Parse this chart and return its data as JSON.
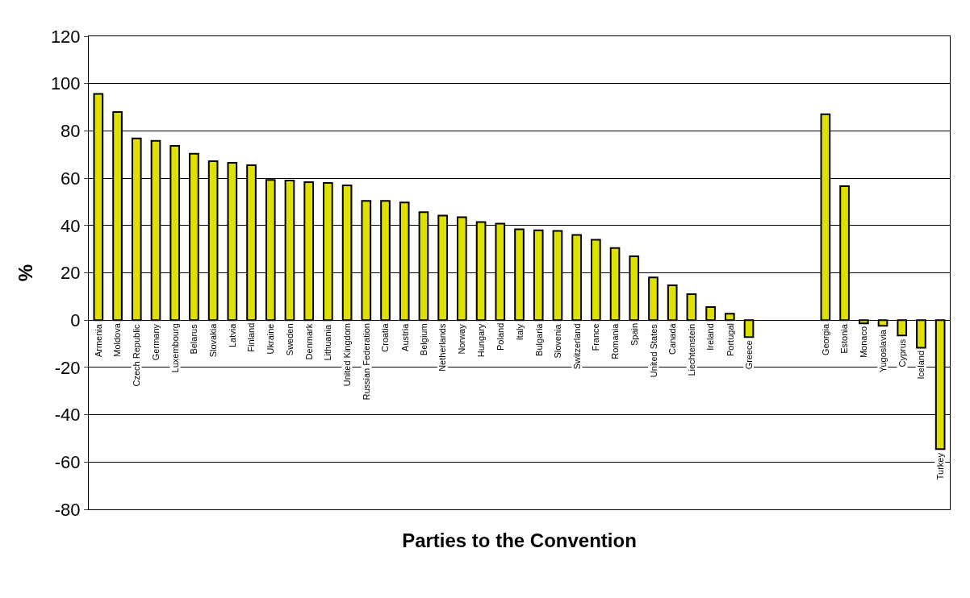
{
  "chart_data": {
    "type": "bar",
    "xlabel": "Parties to the Convention",
    "ylabel": "%",
    "categories": [
      "Armenia",
      "Moldova",
      "Czech Republic",
      "Germany",
      "Luxembourg",
      "Belarus",
      "Slovakia",
      "Latvia",
      "Finland",
      "Ukraine",
      "Sweden",
      "Denmark",
      "Lithuania",
      "United Kingdom",
      "Russian Federation",
      "Croatia",
      "Austria",
      "Belgium",
      "Netherlands",
      "Norway",
      "Hungary",
      "Poland",
      "Italy",
      "Bulgaria",
      "Slovenia",
      "Switzerland",
      "France",
      "Romania",
      "Spain",
      "United States",
      "Canada",
      "Liechtenstein",
      "Ireland",
      "Portugal",
      "Greece",
      null,
      null,
      null,
      "Georgia",
      "Estonia",
      "Monaco",
      "Yugoslavia",
      "Cyprus",
      "Iceland",
      "Turkey"
    ],
    "values": [
      95.6,
      88,
      76.8,
      75.8,
      73.7,
      70.3,
      67.2,
      66.5,
      65.5,
      59.3,
      59,
      58.3,
      58,
      57,
      50.4,
      50.4,
      49.7,
      45.6,
      44.2,
      43.5,
      41.5,
      40.8,
      38.4,
      38,
      37.7,
      36,
      34,
      30.5,
      27,
      18,
      14.7,
      11,
      5.5,
      2.7,
      -7.2,
      null,
      null,
      null,
      87,
      56.6,
      -1.4,
      -2.4,
      -6.5,
      -11.7,
      -54.5
    ],
    "color": "#e0e000",
    "ylim": [
      -80,
      120
    ],
    "yticks": [
      -80,
      -60,
      -40,
      -20,
      0,
      20,
      40,
      60,
      80,
      100,
      120
    ],
    "grid": "y",
    "legend": false
  }
}
